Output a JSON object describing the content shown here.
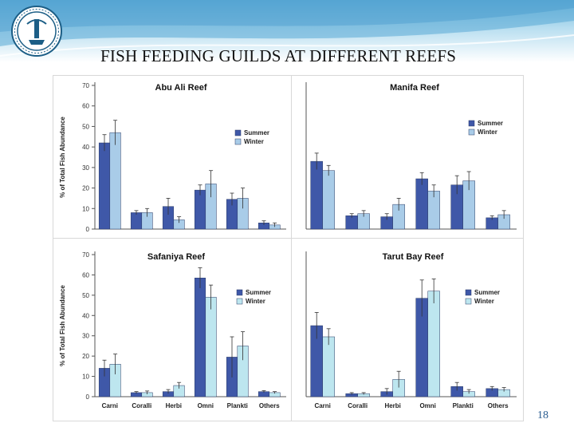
{
  "slide": {
    "title": "FISH FEEDING GUILDS AT DIFFERENT REEFS",
    "page_number": "18"
  },
  "colors": {
    "summer": "#3f58a8",
    "winter_light_blue": "#a9cce8",
    "winter_cyan": "#bde6ef",
    "header_band": "#6fb6dc"
  },
  "chart_data": [
    {
      "type": "bar",
      "title": "Abu Ali Reef",
      "ylabel": "% of Total Fish Abundance",
      "ylim": [
        0,
        70
      ],
      "yticks": [
        "0",
        "10",
        "20",
        "30",
        "40",
        "50",
        "60",
        "70"
      ],
      "categories": [
        "Carni",
        "Coralli",
        "Herbi",
        "Omni",
        "Plankti",
        "Others"
      ],
      "show_category_labels": false,
      "legend": [
        "Summer",
        "Winter"
      ],
      "legend_position": "right",
      "winter_color": "#a9cce8",
      "series": [
        {
          "name": "Summer",
          "values": [
            42,
            8,
            11,
            19,
            14.5,
            3
          ],
          "errors": [
            4,
            1,
            4,
            2.5,
            3,
            1
          ]
        },
        {
          "name": "Winter",
          "values": [
            47,
            8,
            4.5,
            22,
            15,
            2
          ],
          "errors": [
            6,
            2,
            1.5,
            6.5,
            5,
            1
          ]
        }
      ]
    },
    {
      "type": "bar",
      "title": "Manifa Reef",
      "ylabel": "",
      "ylim": [
        0,
        70
      ],
      "yticks": [],
      "categories": [
        "Carni",
        "Coralli",
        "Herbi",
        "Omni",
        "Plankti",
        "Others"
      ],
      "show_category_labels": false,
      "legend": [
        "Summer",
        "Winter"
      ],
      "legend_position": "right",
      "winter_color": "#a9cce8",
      "series": [
        {
          "name": "Summer",
          "values": [
            33,
            6.5,
            6,
            24.5,
            21.5,
            5.5
          ],
          "errors": [
            4,
            1,
            1.5,
            3,
            4.5,
            1
          ]
        },
        {
          "name": "Winter",
          "values": [
            28.5,
            7.5,
            12,
            18.5,
            23.5,
            7
          ],
          "errors": [
            2.5,
            1.5,
            3,
            3,
            4.5,
            2
          ]
        }
      ]
    },
    {
      "type": "bar",
      "title": "Safaniya Reef",
      "ylabel": "% of Total Fish Abundance",
      "ylim": [
        0,
        70
      ],
      "yticks": [
        "0",
        "10",
        "20",
        "30",
        "40",
        "50",
        "60",
        "70"
      ],
      "categories": [
        "Carni",
        "Coralli",
        "Herbi",
        "Omni",
        "Plankti",
        "Others"
      ],
      "show_category_labels": true,
      "legend": [
        "Summer",
        "Winter"
      ],
      "legend_position": "right",
      "winter_color": "#bde6ef",
      "series": [
        {
          "name": "Summer",
          "values": [
            14,
            2,
            2.5,
            58.5,
            19.5,
            2.5
          ],
          "errors": [
            4,
            0.5,
            1,
            5,
            10,
            0.5
          ]
        },
        {
          "name": "Winter",
          "values": [
            16,
            2,
            5.5,
            49,
            25,
            2
          ],
          "errors": [
            5,
            0.8,
            1.5,
            6,
            7,
            0.5
          ]
        }
      ]
    },
    {
      "type": "bar",
      "title": "Tarut Bay Reef",
      "ylabel": "",
      "ylim": [
        0,
        70
      ],
      "yticks": [],
      "categories": [
        "Carni",
        "Coralli",
        "Herbi",
        "Omni",
        "Plankti",
        "Others"
      ],
      "show_category_labels": true,
      "legend": [
        "Summer",
        "Winter"
      ],
      "legend_position": "right",
      "winter_color": "#bde6ef",
      "series": [
        {
          "name": "Summer",
          "values": [
            35,
            1.5,
            2.5,
            48.5,
            5,
            4
          ],
          "errors": [
            6.5,
            0.5,
            1.5,
            9,
            2,
            1
          ]
        },
        {
          "name": "Winter",
          "values": [
            29.5,
            1.5,
            8.5,
            52,
            2.5,
            3.5
          ],
          "errors": [
            4,
            0.5,
            4,
            6,
            1,
            1
          ]
        }
      ]
    }
  ]
}
